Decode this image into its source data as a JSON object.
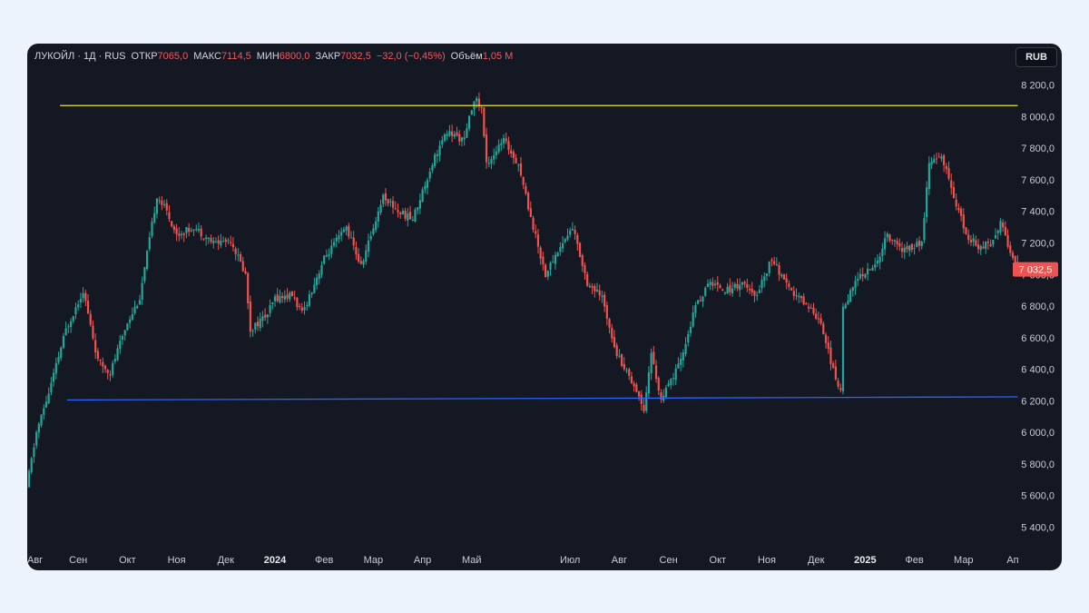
{
  "legend": {
    "symbol": "ЛУКОЙЛ · 1Д · RUS",
    "open_label": "ОТКР",
    "open": "7065,0",
    "high_label": "МАКС",
    "high": "7114,5",
    "low_label": "МИН",
    "low": "6800,0",
    "close_label": "ЗАКР",
    "close": "7032,5",
    "change": "−32,0 (−0,45%)",
    "volume_label": "Объём",
    "volume": "1,05 M"
  },
  "currency_button": "RUB",
  "colors": {
    "up": "#26a69a",
    "down": "#ef5350",
    "resistance": "#e8e23a",
    "support": "#2962ff",
    "background": "#141823"
  },
  "chart_data": {
    "type": "candlestick",
    "title": "",
    "ylim": [
      5270,
      8290
    ],
    "yticks": [
      "8 200,0",
      "8 000,0",
      "7 800,0",
      "7 600,0",
      "7 400,0",
      "7 200,0",
      "7 000,0",
      "6 800,0",
      "6 600,0",
      "6 400,0",
      "6 200,0",
      "6 000,0",
      "5 800,0",
      "5 600,0",
      "5 400,0"
    ],
    "ytick_values": [
      8200,
      8000,
      7800,
      7600,
      7400,
      7200,
      7000,
      6800,
      6600,
      6400,
      6200,
      6000,
      5800,
      5600,
      5400
    ],
    "xticks": [
      {
        "label": "Авг",
        "month": 0,
        "bold": false
      },
      {
        "label": "Сен",
        "month": 1,
        "bold": false
      },
      {
        "label": "Окт",
        "month": 2,
        "bold": false
      },
      {
        "label": "Ноя",
        "month": 3,
        "bold": false
      },
      {
        "label": "Дек",
        "month": 4,
        "bold": false
      },
      {
        "label": "2024",
        "month": 5,
        "bold": true
      },
      {
        "label": "Фев",
        "month": 6,
        "bold": false
      },
      {
        "label": "Мар",
        "month": 7,
        "bold": false
      },
      {
        "label": "Апр",
        "month": 8,
        "bold": false
      },
      {
        "label": "Май",
        "month": 9,
        "bold": false
      },
      {
        "label": "Июл",
        "month": 11,
        "bold": false
      },
      {
        "label": "Авг",
        "month": 12,
        "bold": false
      },
      {
        "label": "Сен",
        "month": 13,
        "bold": false
      },
      {
        "label": "Окт",
        "month": 14,
        "bold": false
      },
      {
        "label": "Ноя",
        "month": 15,
        "bold": false
      },
      {
        "label": "Дек",
        "month": 16,
        "bold": false
      },
      {
        "label": "2025",
        "month": 17,
        "bold": true
      },
      {
        "label": "Фев",
        "month": 18,
        "bold": false
      },
      {
        "label": "Мар",
        "month": 19,
        "bold": false
      },
      {
        "label": "Ап",
        "month": 20,
        "bold": false
      }
    ],
    "horizontal_lines": [
      {
        "name": "resistance",
        "start": [
          0.63,
          8070
        ],
        "end": [
          20.1,
          8070
        ]
      },
      {
        "name": "support",
        "start": [
          0.77,
          6205
        ],
        "end": [
          20.1,
          6225
        ]
      }
    ],
    "last_price": {
      "value": 7032.5,
      "label": "7 032,5"
    },
    "price_path": [
      [
        0.0,
        5650
      ],
      [
        0.2,
        6000
      ],
      [
        0.45,
        6250
      ],
      [
        0.8,
        6650
      ],
      [
        1.15,
        6900
      ],
      [
        1.45,
        6450
      ],
      [
        1.7,
        6380
      ],
      [
        2.05,
        6700
      ],
      [
        2.3,
        6850
      ],
      [
        2.65,
        7500
      ],
      [
        2.85,
        7400
      ],
      [
        3.05,
        7250
      ],
      [
        3.4,
        7300
      ],
      [
        3.8,
        7200
      ],
      [
        4.15,
        7220
      ],
      [
        4.45,
        7000
      ],
      [
        4.55,
        6650
      ],
      [
        4.9,
        6750
      ],
      [
        5.05,
        6850
      ],
      [
        5.4,
        6870
      ],
      [
        5.6,
        6750
      ],
      [
        6.05,
        7100
      ],
      [
        6.5,
        7300
      ],
      [
        6.8,
        7050
      ],
      [
        7.25,
        7500
      ],
      [
        7.55,
        7400
      ],
      [
        7.85,
        7350
      ],
      [
        8.3,
        7750
      ],
      [
        8.55,
        7900
      ],
      [
        8.9,
        7850
      ],
      [
        9.1,
        8120
      ],
      [
        9.25,
        8050
      ],
      [
        9.35,
        7700
      ],
      [
        9.7,
        7850
      ],
      [
        10.0,
        7700
      ],
      [
        10.3,
        7300
      ],
      [
        10.55,
        7000
      ],
      [
        10.8,
        7150
      ],
      [
        11.1,
        7300
      ],
      [
        11.4,
        6950
      ],
      [
        11.7,
        6850
      ],
      [
        12.0,
        6500
      ],
      [
        12.35,
        6300
      ],
      [
        12.55,
        6150
      ],
      [
        12.7,
        6500
      ],
      [
        12.9,
        6200
      ],
      [
        13.3,
        6450
      ],
      [
        13.6,
        6800
      ],
      [
        13.9,
        6950
      ],
      [
        14.25,
        6900
      ],
      [
        14.55,
        6950
      ],
      [
        14.8,
        6850
      ],
      [
        15.15,
        7100
      ],
      [
        15.5,
        6900
      ],
      [
        15.9,
        6800
      ],
      [
        16.15,
        6700
      ],
      [
        16.45,
        6330
      ],
      [
        16.55,
        6250
      ],
      [
        16.6,
        6800
      ],
      [
        16.95,
        7000
      ],
      [
        17.25,
        7050
      ],
      [
        17.5,
        7250
      ],
      [
        17.8,
        7150
      ],
      [
        18.2,
        7200
      ],
      [
        18.35,
        7700
      ],
      [
        18.6,
        7750
      ],
      [
        18.85,
        7500
      ],
      [
        19.1,
        7250
      ],
      [
        19.35,
        7180
      ],
      [
        19.6,
        7200
      ],
      [
        19.8,
        7330
      ],
      [
        20.0,
        7150
      ],
      [
        20.12,
        7032
      ]
    ]
  }
}
